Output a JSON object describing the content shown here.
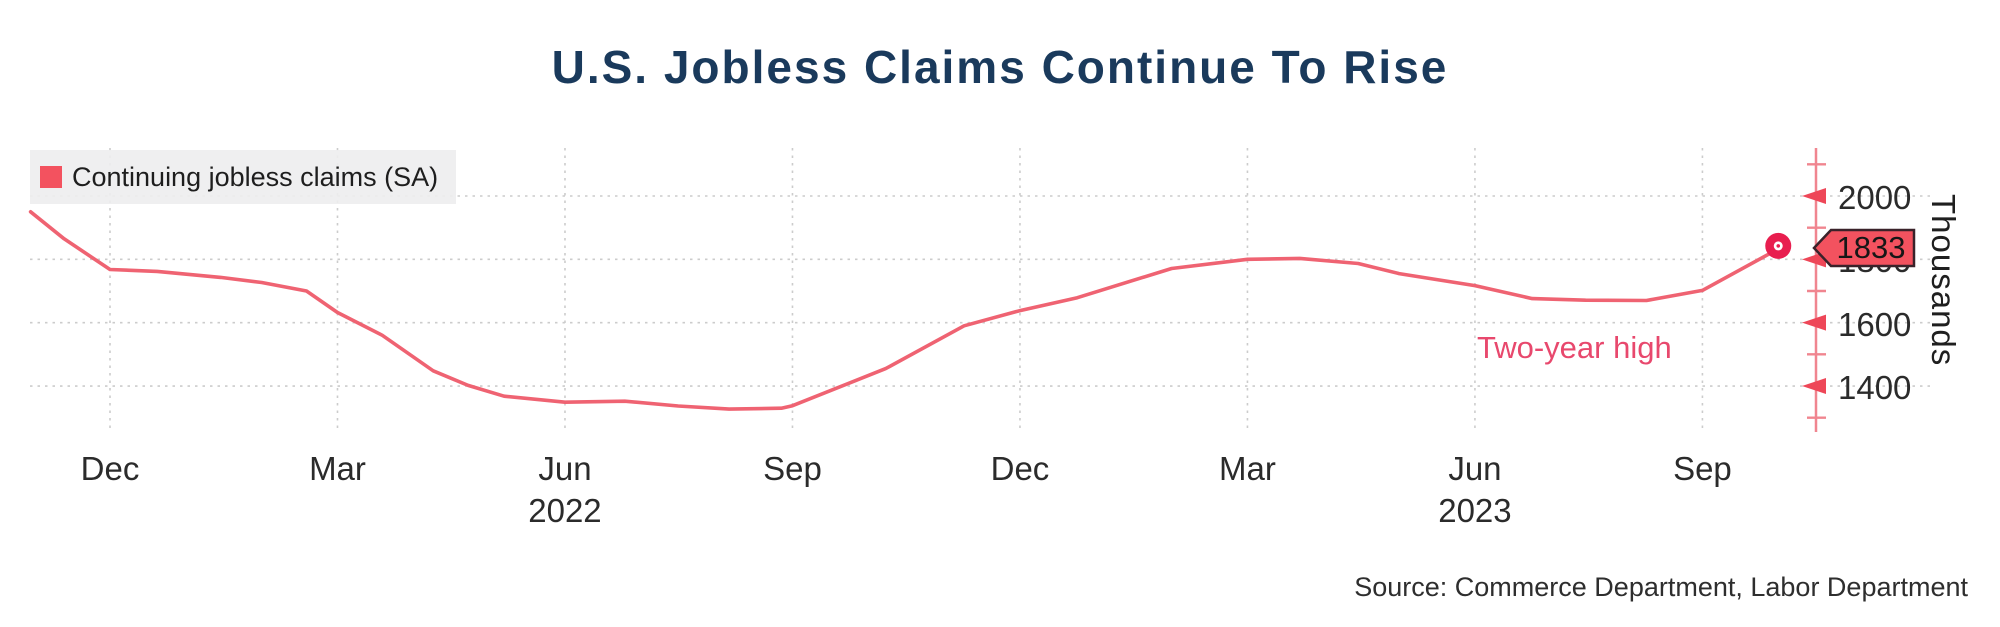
{
  "title": "U.S. Jobless Claims Continue To Rise",
  "legend": {
    "label": "Continuing jobless claims (SA)"
  },
  "annotation": {
    "text": "Two-year high"
  },
  "source": "Source: Commerce Department, Labor Department",
  "y_axis": {
    "unit_label": "Thousands",
    "tick_labels": [
      2000,
      1800,
      1600,
      1400
    ],
    "minor_ticks": [
      2100,
      1900,
      1700,
      1500,
      1300
    ],
    "last_value_tag": "1833"
  },
  "x_axis": {
    "ticks": [
      {
        "label": "Dec",
        "date": "2021-12-01"
      },
      {
        "label": "Mar",
        "date": "2022-03-01"
      },
      {
        "label": "Jun",
        "date": "2022-06-01",
        "year": "2022"
      },
      {
        "label": "Sep",
        "date": "2022-09-01"
      },
      {
        "label": "Dec",
        "date": "2022-12-01"
      },
      {
        "label": "Mar",
        "date": "2023-03-01"
      },
      {
        "label": "Jun",
        "date": "2023-06-01",
        "year": "2023"
      },
      {
        "label": "Sep",
        "date": "2023-09-01"
      }
    ]
  },
  "colors": {
    "line": "#ef6372",
    "accent": "#e81e4f",
    "tag_fill": "#f3525f",
    "tag_border": "#3a222a",
    "tag_text": "#161616",
    "axis": "#f0858f",
    "arrow": "#ee4758",
    "grid": "#cccccc",
    "title": "#1a3a5c",
    "annotation": "#e8486d",
    "text": "#2b2b2b",
    "legend_bg": "#ededee"
  },
  "chart_data": {
    "type": "line",
    "title": "U.S. Jobless Claims Continue To Rise",
    "xlabel": "",
    "ylabel": "Thousands",
    "ylim": [
      1250,
      2150
    ],
    "yticks": [
      1400,
      1600,
      1800,
      2000
    ],
    "grid": "dashed",
    "legend_position": "top-left",
    "last_value_label": 1833,
    "series": [
      {
        "name": "Continuing jobless claims (SA)",
        "points": [
          [
            "2021-10-30",
            1950
          ],
          [
            "2021-11-13",
            1865
          ],
          [
            "2021-12-01",
            1768
          ],
          [
            "2021-12-20",
            1762
          ],
          [
            "2022-01-15",
            1743
          ],
          [
            "2022-02-01",
            1727
          ],
          [
            "2022-02-19",
            1700
          ],
          [
            "2022-03-01",
            1632
          ],
          [
            "2022-03-19",
            1560
          ],
          [
            "2022-04-09",
            1448
          ],
          [
            "2022-04-23",
            1402
          ],
          [
            "2022-05-07",
            1368
          ],
          [
            "2022-06-01",
            1349
          ],
          [
            "2022-06-25",
            1352
          ],
          [
            "2022-07-16",
            1337
          ],
          [
            "2022-08-06",
            1327
          ],
          [
            "2022-08-27",
            1330
          ],
          [
            "2022-09-01",
            1338
          ],
          [
            "2022-10-08",
            1455
          ],
          [
            "2022-11-09",
            1590
          ],
          [
            "2022-12-01",
            1638
          ],
          [
            "2022-12-24",
            1679
          ],
          [
            "2023-02-01",
            1771
          ],
          [
            "2023-03-01",
            1800
          ],
          [
            "2023-03-22",
            1803
          ],
          [
            "2023-04-15",
            1787
          ],
          [
            "2023-05-01",
            1755
          ],
          [
            "2023-06-01",
            1717
          ],
          [
            "2023-06-24",
            1676
          ],
          [
            "2023-07-15",
            1671
          ],
          [
            "2023-08-09",
            1670
          ],
          [
            "2023-09-01",
            1702
          ],
          [
            "2023-10-01",
            1833
          ]
        ]
      }
    ]
  }
}
